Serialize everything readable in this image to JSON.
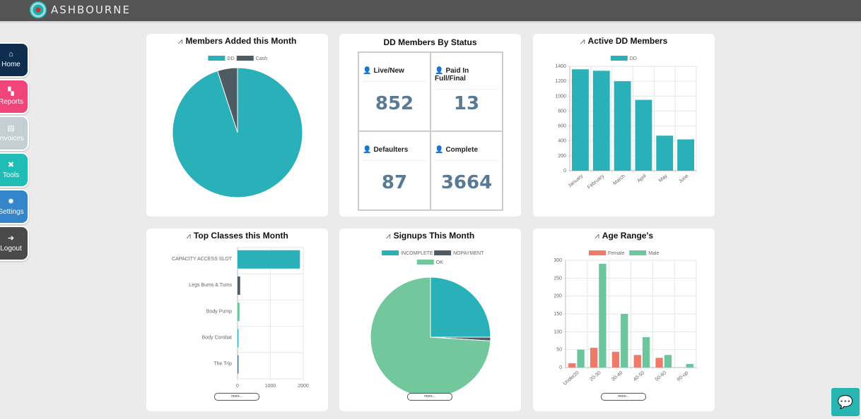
{
  "brand": {
    "name": "ASHBOURNE"
  },
  "nav": [
    {
      "label": "Home",
      "icon": "home-icon",
      "color": "#0f2d4f",
      "glyph": "⌂"
    },
    {
      "label": "Reports",
      "icon": "chart-icon",
      "color": "#f0457a",
      "glyph": "▚"
    },
    {
      "label": "Invoices",
      "icon": "document-icon",
      "color": "#c3cfd3",
      "glyph": "▤"
    },
    {
      "label": "Tools",
      "icon": "tools-icon",
      "color": "#20bdb7",
      "glyph": "✖"
    },
    {
      "label": "Settings",
      "icon": "gear-icon",
      "color": "#3585cc",
      "glyph": "✹"
    },
    {
      "label": "Logout",
      "icon": "logout-icon",
      "color": "#4a4a4a",
      "glyph": "➜"
    }
  ],
  "cards": {
    "members_added": {
      "title": "Members Added this Month"
    },
    "dd_status": {
      "title": "DD Members By Status",
      "cells": [
        {
          "label": "Live/New",
          "value": "852"
        },
        {
          "label": "Paid In Full/Final",
          "value": "13"
        },
        {
          "label": "Defaulters",
          "value": "87"
        },
        {
          "label": "Complete",
          "value": "3664"
        }
      ]
    },
    "active_dd": {
      "title": "Active DD Members"
    },
    "top_classes": {
      "title": "Top Classes this Month",
      "more": "more..."
    },
    "signups": {
      "title": "Signups This Month",
      "more": "more..."
    },
    "age": {
      "title": "Age Range's",
      "more": "more..."
    }
  },
  "chart_data": [
    {
      "type": "pie",
      "title": "Members Added this Month",
      "legend": "top",
      "labels": [
        "DD",
        "Cash"
      ],
      "values": [
        95,
        5
      ],
      "colors": [
        "#2ab0b8",
        "#4f5b62"
      ]
    },
    {
      "type": "bar",
      "title": "Active DD Members",
      "categories": [
        "January",
        "February",
        "March",
        "April",
        "May",
        "June"
      ],
      "series": [
        {
          "name": "DD",
          "values": [
            1360,
            1340,
            1200,
            950,
            470,
            420
          ],
          "color": "#2ab0b8"
        }
      ],
      "ylim": [
        0,
        1400
      ],
      "yticks": [
        0,
        200,
        400,
        600,
        800,
        1000,
        1200,
        1400
      ],
      "grid": true,
      "legend": "top"
    },
    {
      "type": "bar",
      "orientation": "horizontal",
      "title": "Top Classes this Month",
      "categories": [
        "CAPACITY ACCESS SLOT",
        "Legs Bums & Tums",
        "Body Pump",
        "Body Combat",
        "The Trip"
      ],
      "values": [
        1900,
        80,
        60,
        30,
        30
      ],
      "colors": [
        "#2ab0b8",
        "#4f5b62",
        "#6cc59c",
        "#37b7c9",
        "#5a7a94"
      ],
      "xlim": [
        0,
        2000
      ],
      "xticks": [
        0,
        1000,
        2000
      ],
      "grid": true
    },
    {
      "type": "pie",
      "title": "Signups This Month",
      "legend": "top",
      "labels": [
        "INCOMPLETE",
        "NOPAYMENT",
        "OK"
      ],
      "values": [
        25,
        1,
        74
      ],
      "colors": [
        "#2ab0b8",
        "#4f5b62",
        "#72c89c"
      ]
    },
    {
      "type": "bar",
      "title": "Age Range's",
      "categories": [
        "Under20",
        "20-30",
        "30-40",
        "40-50",
        "50-60",
        "60-up"
      ],
      "series": [
        {
          "name": "Female",
          "values": [
            12,
            55,
            44,
            35,
            27,
            0
          ],
          "color": "#f07a6a"
        },
        {
          "name": "Male",
          "values": [
            50,
            290,
            150,
            85,
            35,
            10
          ],
          "color": "#6cc59c"
        }
      ],
      "ylim": [
        0,
        300
      ],
      "yticks": [
        0,
        50,
        100,
        150,
        200,
        250,
        300
      ],
      "grid": true,
      "legend": "top"
    }
  ]
}
